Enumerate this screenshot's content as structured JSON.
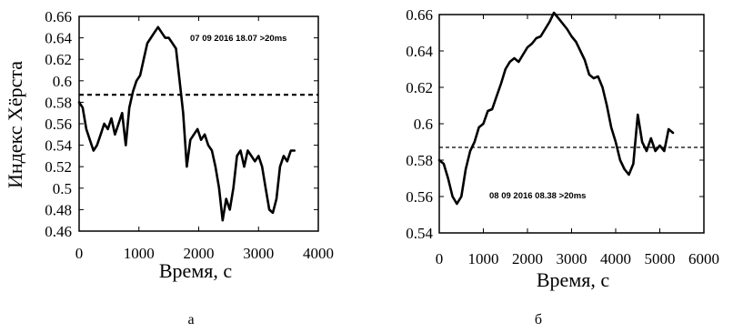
{
  "chart_data": [
    {
      "type": "line",
      "panel_label": "а",
      "xlabel": "Время, с",
      "ylabel": "Индекс Хёрста",
      "annotation": "07 09 2016 18.07 >20ms",
      "xlim": [
        0,
        4000
      ],
      "ylim": [
        0.46,
        0.66
      ],
      "xticks": [
        0,
        1000,
        2000,
        3000,
        4000
      ],
      "xtick_labels": [
        "0",
        "1000",
        "2000",
        "3000",
        "4000"
      ],
      "yticks": [
        0.46,
        0.48,
        0.5,
        0.52,
        0.54,
        0.56,
        0.58,
        0.6,
        0.62,
        0.64,
        0.66
      ],
      "ytick_labels": [
        "0.46",
        "0.48",
        "0.5",
        "0.52",
        "0.54",
        "0.56",
        "0.58",
        "0.6",
        "0.62",
        "0.64",
        "0.66"
      ],
      "threshold": 0.587,
      "series": [
        {
          "style": "solid",
          "x": [
            0,
            60,
            120,
            180,
            240,
            300,
            360,
            420,
            480,
            540,
            600,
            660,
            720,
            780,
            840,
            900,
            960,
            1020,
            1080,
            1140,
            1200,
            1260,
            1320,
            1380,
            1440,
            1500,
            1560,
            1620,
            1680,
            1740,
            1800,
            1860,
            1920,
            1980,
            2040,
            2100,
            2160,
            2220,
            2280,
            2340,
            2400,
            2460,
            2520,
            2580,
            2640,
            2700,
            2760,
            2820,
            2880,
            2940,
            3000,
            3060,
            3120,
            3180,
            3240,
            3300,
            3360,
            3420,
            3480,
            3540,
            3600
          ],
          "y": [
            0.58,
            0.575,
            0.555,
            0.545,
            0.535,
            0.54,
            0.55,
            0.56,
            0.555,
            0.565,
            0.55,
            0.56,
            0.57,
            0.54,
            0.575,
            0.59,
            0.6,
            0.605,
            0.62,
            0.635,
            0.64,
            0.645,
            0.65,
            0.645,
            0.64,
            0.64,
            0.635,
            0.63,
            0.6,
            0.57,
            0.52,
            0.545,
            0.55,
            0.555,
            0.545,
            0.55,
            0.54,
            0.535,
            0.52,
            0.5,
            0.47,
            0.49,
            0.48,
            0.5,
            0.53,
            0.535,
            0.52,
            0.535,
            0.53,
            0.525,
            0.53,
            0.52,
            0.5,
            0.48,
            0.477,
            0.49,
            0.52,
            0.53,
            0.525,
            0.535,
            0.535
          ]
        }
      ]
    },
    {
      "type": "line",
      "panel_label": "б",
      "xlabel": "Время, с",
      "ylabel": "",
      "annotation": "08 09 2016 08.38 >20ms",
      "xlim": [
        0,
        6000
      ],
      "ylim": [
        0.54,
        0.66
      ],
      "xticks": [
        0,
        1000,
        2000,
        3000,
        4000,
        5000,
        6000
      ],
      "xtick_labels": [
        "0",
        "1000",
        "2000",
        "3000",
        "4000",
        "5000",
        "6000"
      ],
      "yticks": [
        0.54,
        0.56,
        0.58,
        0.6,
        0.62,
        0.64,
        0.66
      ],
      "ytick_labels": [
        "0.54",
        "0.56",
        "0.58",
        "0.6",
        "0.62",
        "0.64",
        "0.66"
      ],
      "threshold": 0.587,
      "series": [
        {
          "style": "solid",
          "x": [
            0,
            100,
            200,
            300,
            400,
            500,
            600,
            700,
            800,
            900,
            1000,
            1100,
            1200,
            1300,
            1400,
            1500,
            1600,
            1700,
            1800,
            1900,
            2000,
            2100,
            2200,
            2300,
            2400,
            2500,
            2600,
            2700,
            2800,
            2900,
            3000,
            3100,
            3200,
            3300,
            3400,
            3500,
            3600,
            3700,
            3800,
            3900,
            4000,
            4100,
            4200,
            4300,
            4400,
            4500,
            4600,
            4700,
            4800,
            4900,
            5000,
            5100,
            5200,
            5300
          ],
          "y": [
            0.58,
            0.578,
            0.57,
            0.56,
            0.556,
            0.56,
            0.575,
            0.585,
            0.59,
            0.598,
            0.6,
            0.607,
            0.608,
            0.615,
            0.622,
            0.63,
            0.634,
            0.636,
            0.634,
            0.638,
            0.642,
            0.644,
            0.647,
            0.648,
            0.652,
            0.656,
            0.661,
            0.658,
            0.655,
            0.652,
            0.648,
            0.645,
            0.64,
            0.635,
            0.627,
            0.625,
            0.626,
            0.62,
            0.61,
            0.598,
            0.59,
            0.58,
            0.575,
            0.572,
            0.578,
            0.605,
            0.59,
            0.585,
            0.592,
            0.585,
            0.588,
            0.585,
            0.597,
            0.595
          ]
        }
      ]
    }
  ]
}
